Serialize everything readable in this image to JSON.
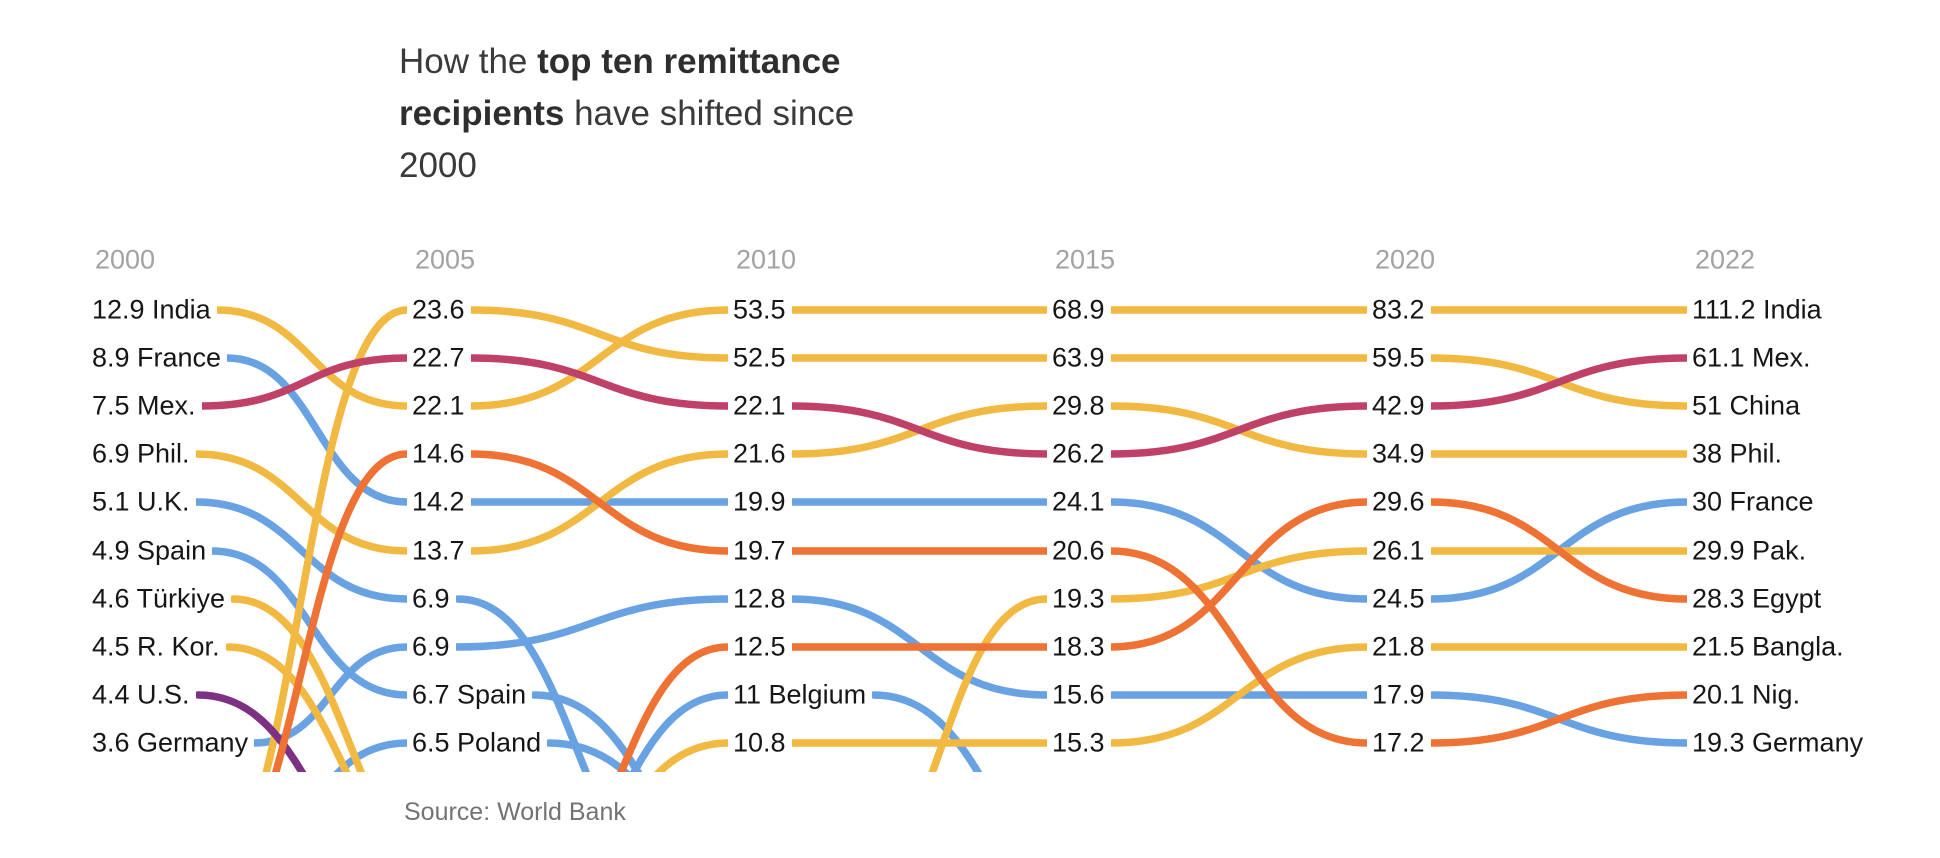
{
  "title": {
    "line1_normal": "How the ",
    "line1_bold": "top ten remittance",
    "line2_bold": "recipients",
    "line2_normal": " have shifted since",
    "line3": "2000"
  },
  "source": "Source: World Bank",
  "palette": {
    "yellow": "#F1B942",
    "blue": "#68A2E3",
    "crimson": "#C04168",
    "orange": "#ED7233",
    "purple": "#7C3183"
  },
  "chart_data": {
    "type": "line",
    "subtype": "bump-chart",
    "title": "How the top ten remittance recipients have shifted since 2000",
    "years": [
      "2000",
      "2005",
      "2010",
      "2015",
      "2020",
      "2022"
    ],
    "legend_position": "none",
    "grid": false,
    "series": [
      {
        "id": "uk",
        "name": "U.K.",
        "color": "blue",
        "enters": false,
        "exits": true,
        "points": [
          {
            "year": "2000",
            "value": 5.1,
            "rank": 5,
            "label": "5.1 U.K."
          },
          {
            "year": "2005",
            "value": 6.9,
            "rank": 7,
            "label": "6.9"
          }
        ]
      },
      {
        "id": "spain",
        "name": "Spain",
        "color": "blue",
        "enters": false,
        "exits": true,
        "points": [
          {
            "year": "2000",
            "value": 4.9,
            "rank": 6,
            "label": "4.9 Spain"
          },
          {
            "year": "2005",
            "value": 6.7,
            "rank": 9,
            "label": "6.7 Spain"
          }
        ]
      },
      {
        "id": "poland",
        "name": "Poland",
        "color": "blue",
        "enters": true,
        "exits": true,
        "points": [
          {
            "year": "2005",
            "value": 6.5,
            "rank": 10,
            "label": "6.5 Poland"
          }
        ]
      },
      {
        "id": "belgium",
        "name": "Belgium",
        "color": "blue",
        "enters": true,
        "exits": true,
        "points": [
          {
            "year": "2010",
            "value": 11,
            "rank": 9,
            "label": "11 Belgium"
          }
        ]
      },
      {
        "id": "germany",
        "name": "Germany",
        "color": "blue",
        "enters": false,
        "exits": false,
        "points": [
          {
            "year": "2000",
            "value": 3.6,
            "rank": 10,
            "label": "3.6 Germany"
          },
          {
            "year": "2005",
            "value": 6.9,
            "rank": 8,
            "label": "6.9"
          },
          {
            "year": "2010",
            "value": 12.8,
            "rank": 7,
            "label": "12.8"
          },
          {
            "year": "2015",
            "value": 15.6,
            "rank": 9,
            "label": "15.6"
          },
          {
            "year": "2020",
            "value": 17.9,
            "rank": 9,
            "label": "17.9"
          },
          {
            "year": "2022",
            "value": 19.3,
            "rank": 10,
            "label": "19.3 Germany"
          }
        ]
      },
      {
        "id": "france",
        "name": "France",
        "color": "blue",
        "enters": false,
        "exits": false,
        "points": [
          {
            "year": "2000",
            "value": 8.9,
            "rank": 2,
            "label": "8.9 France"
          },
          {
            "year": "2005",
            "value": 14.2,
            "rank": 5,
            "label": "14.2"
          },
          {
            "year": "2010",
            "value": 19.9,
            "rank": 5,
            "label": "19.9"
          },
          {
            "year": "2015",
            "value": 24.1,
            "rank": 5,
            "label": "24.1"
          },
          {
            "year": "2020",
            "value": 24.5,
            "rank": 7,
            "label": "24.5"
          },
          {
            "year": "2022",
            "value": 30,
            "rank": 5,
            "label": "30 France"
          }
        ]
      },
      {
        "id": "rkorea",
        "name": "R. Kor.",
        "color": "yellow",
        "enters": false,
        "exits": true,
        "points": [
          {
            "year": "2000",
            "value": 4.5,
            "rank": 8,
            "label": "4.5 R. Kor."
          }
        ]
      },
      {
        "id": "turkiye",
        "name": "Türkiye",
        "color": "yellow",
        "enters": false,
        "exits": true,
        "points": [
          {
            "year": "2000",
            "value": 4.6,
            "rank": 7,
            "label": "4.6 Türkiye"
          }
        ]
      },
      {
        "id": "bangladesh",
        "name": "Bangla.",
        "color": "yellow",
        "enters": true,
        "exits": false,
        "points": [
          {
            "year": "2010",
            "value": 10.8,
            "rank": 10,
            "label": "10.8"
          },
          {
            "year": "2015",
            "value": 15.3,
            "rank": 10,
            "label": "15.3"
          },
          {
            "year": "2020",
            "value": 21.8,
            "rank": 8,
            "label": "21.8"
          },
          {
            "year": "2022",
            "value": 21.5,
            "rank": 8,
            "label": "21.5 Bangla."
          }
        ]
      },
      {
        "id": "pakistan",
        "name": "Pak.",
        "color": "yellow",
        "enters": true,
        "exits": false,
        "points": [
          {
            "year": "2015",
            "value": 19.3,
            "rank": 7,
            "label": "19.3"
          },
          {
            "year": "2020",
            "value": 26.1,
            "rank": 6,
            "label": "26.1"
          },
          {
            "year": "2022",
            "value": 29.9,
            "rank": 6,
            "label": "29.9 Pak."
          }
        ]
      },
      {
        "id": "philippines",
        "name": "Phil.",
        "color": "yellow",
        "enters": false,
        "exits": false,
        "points": [
          {
            "year": "2000",
            "value": 6.9,
            "rank": 4,
            "label": "6.9 Phil."
          },
          {
            "year": "2005",
            "value": 13.7,
            "rank": 6,
            "label": "13.7"
          },
          {
            "year": "2010",
            "value": 21.6,
            "rank": 4,
            "label": "21.6"
          },
          {
            "year": "2015",
            "value": 29.8,
            "rank": 3,
            "label": "29.8"
          },
          {
            "year": "2020",
            "value": 34.9,
            "rank": 4,
            "label": "34.9"
          },
          {
            "year": "2022",
            "value": 38,
            "rank": 4,
            "label": "38 Phil."
          }
        ]
      },
      {
        "id": "india",
        "name": "India",
        "color": "yellow",
        "enters": false,
        "exits": false,
        "points": [
          {
            "year": "2000",
            "value": 12.9,
            "rank": 1,
            "label": "12.9 India"
          },
          {
            "year": "2005",
            "value": 22.1,
            "rank": 3,
            "label": "22.1"
          },
          {
            "year": "2010",
            "value": 53.5,
            "rank": 1,
            "label": "53.5"
          },
          {
            "year": "2015",
            "value": 68.9,
            "rank": 1,
            "label": "68.9"
          },
          {
            "year": "2020",
            "value": 83.2,
            "rank": 1,
            "label": "83.2"
          },
          {
            "year": "2022",
            "value": 111.2,
            "rank": 1,
            "label": "111.2 India"
          }
        ]
      },
      {
        "id": "china",
        "name": "China",
        "color": "yellow",
        "enters": true,
        "exits": false,
        "points": [
          {
            "year": "2005",
            "value": 23.6,
            "rank": 1,
            "label": "23.6"
          },
          {
            "year": "2010",
            "value": 52.5,
            "rank": 2,
            "label": "52.5"
          },
          {
            "year": "2015",
            "value": 63.9,
            "rank": 2,
            "label": "63.9"
          },
          {
            "year": "2020",
            "value": 59.5,
            "rank": 2,
            "label": "59.5"
          },
          {
            "year": "2022",
            "value": 51,
            "rank": 3,
            "label": "51 China"
          }
        ]
      },
      {
        "id": "us",
        "name": "U.S.",
        "color": "purple",
        "enters": false,
        "exits": true,
        "points": [
          {
            "year": "2000",
            "value": 4.4,
            "rank": 9,
            "label": "4.4 U.S."
          }
        ]
      },
      {
        "id": "nigeria",
        "name": "Nig.",
        "color": "orange",
        "enters": true,
        "exits": false,
        "points": [
          {
            "year": "2005",
            "value": 14.6,
            "rank": 4,
            "label": "14.6"
          },
          {
            "year": "2010",
            "value": 19.7,
            "rank": 6,
            "label": "19.7"
          },
          {
            "year": "2015",
            "value": 20.6,
            "rank": 6,
            "label": "20.6"
          },
          {
            "year": "2020",
            "value": 17.2,
            "rank": 10,
            "label": "17.2"
          },
          {
            "year": "2022",
            "value": 20.1,
            "rank": 9,
            "label": "20.1 Nig."
          }
        ]
      },
      {
        "id": "egypt",
        "name": "Egypt",
        "color": "orange",
        "enters": true,
        "exits": false,
        "points": [
          {
            "year": "2010",
            "value": 12.5,
            "rank": 8,
            "label": "12.5"
          },
          {
            "year": "2015",
            "value": 18.3,
            "rank": 8,
            "label": "18.3"
          },
          {
            "year": "2020",
            "value": 29.6,
            "rank": 5,
            "label": "29.6"
          },
          {
            "year": "2022",
            "value": 28.3,
            "rank": 7,
            "label": "28.3 Egypt"
          }
        ]
      },
      {
        "id": "mexico",
        "name": "Mex.",
        "color": "crimson",
        "enters": false,
        "exits": false,
        "points": [
          {
            "year": "2000",
            "value": 7.5,
            "rank": 3,
            "label": "7.5 Mex."
          },
          {
            "year": "2005",
            "value": 22.7,
            "rank": 2,
            "label": "22.7"
          },
          {
            "year": "2010",
            "value": 22.1,
            "rank": 3,
            "label": "22.1"
          },
          {
            "year": "2015",
            "value": 26.2,
            "rank": 4,
            "label": "26.2"
          },
          {
            "year": "2020",
            "value": 42.9,
            "rank": 3,
            "label": "42.9"
          },
          {
            "year": "2022",
            "value": 61.1,
            "rank": 2,
            "label": "61.1 Mex."
          }
        ]
      }
    ]
  }
}
